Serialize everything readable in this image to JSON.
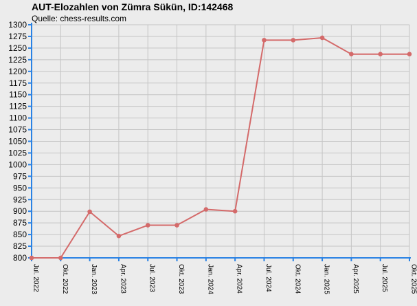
{
  "chart_data": {
    "type": "line",
    "title": "AUT-Elozahlen von Zümra Sükün, ID:142468",
    "subtitle": "Quelle: chess-results.com",
    "xlabel": "",
    "ylabel": "",
    "categories": [
      "Jul. 2022",
      "Okt. 2022",
      "Jan. 2023",
      "Apr. 2023",
      "Jul. 2023",
      "Okt. 2023",
      "Jan. 2024",
      "Apr. 2024",
      "Jul. 2024",
      "Okt. 2024",
      "Jan. 2025",
      "Apr. 2025",
      "Jul. 2025",
      "Okt. 2025"
    ],
    "series": [
      {
        "values": [
          800,
          800,
          899,
          847,
          870,
          870,
          904,
          900,
          1267,
          1267,
          1272,
          1237,
          1237,
          1237
        ]
      }
    ],
    "ylim": [
      800,
      1300
    ],
    "yticks": [
      800,
      825,
      850,
      875,
      900,
      925,
      950,
      975,
      1000,
      1025,
      1050,
      1075,
      1100,
      1125,
      1150,
      1175,
      1200,
      1225,
      1250,
      1275,
      1300
    ],
    "grid": true,
    "legend": "none",
    "colors": {
      "line": "#d46a6a",
      "point": "#d46a6a",
      "axis": "#2a82e4",
      "grid": "#c4c4c4",
      "background": "#ececec"
    }
  }
}
